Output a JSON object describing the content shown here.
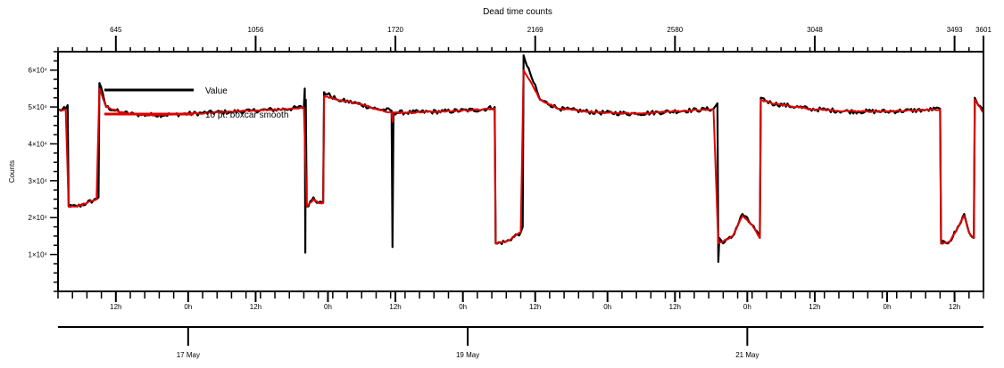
{
  "chart_data": {
    "type": "line",
    "title": "Dead time counts",
    "ylabel": "Counts",
    "x_unit": "hours",
    "xlim": [
      0,
      96
    ],
    "ylim": [
      0,
      65000
    ],
    "top_axis": {
      "ticks": [
        {
          "x": 6,
          "label": "645"
        },
        {
          "x": 20.5,
          "label": "1056"
        },
        {
          "x": 35,
          "label": "1720"
        },
        {
          "x": 49.5,
          "label": "2169"
        },
        {
          "x": 64,
          "label": "2580"
        },
        {
          "x": 78.5,
          "label": "3048"
        },
        {
          "x": 93,
          "label": "3493"
        },
        {
          "x": 96,
          "label": "3601"
        }
      ]
    },
    "y_ticks": [
      {
        "value": 10000,
        "label": "1×10⁴"
      },
      {
        "value": 20000,
        "label": "2×10⁴"
      },
      {
        "value": 30000,
        "label": "3×10⁴"
      },
      {
        "value": 40000,
        "label": "4×10⁴"
      },
      {
        "value": 50000,
        "label": "5×10⁴"
      },
      {
        "value": 60000,
        "label": "6×10⁴"
      }
    ],
    "hour_ticks": [
      {
        "x": 6,
        "label": "12h"
      },
      {
        "x": 13.5,
        "label": "0h"
      },
      {
        "x": 20.5,
        "label": "12h"
      },
      {
        "x": 28,
        "label": "0h"
      },
      {
        "x": 35,
        "label": "12h"
      },
      {
        "x": 42,
        "label": "0h"
      },
      {
        "x": 49.5,
        "label": "12h"
      },
      {
        "x": 57,
        "label": "0h"
      },
      {
        "x": 64,
        "label": "12h"
      },
      {
        "x": 71.5,
        "label": "0h"
      },
      {
        "x": 78.5,
        "label": "12h"
      },
      {
        "x": 86,
        "label": "0h"
      },
      {
        "x": 93,
        "label": "12h"
      }
    ],
    "date_ticks": [
      {
        "x": 13.5,
        "label": "17 May"
      },
      {
        "x": 42.5,
        "label": "19 May"
      },
      {
        "x": 71.5,
        "label": "21 May"
      }
    ],
    "legend": {
      "position": "top-left",
      "entries": [
        {
          "label": "Value",
          "color": "#000000"
        },
        {
          "label": "10 pt. boxcar smooth",
          "color": "#e00000"
        }
      ]
    },
    "series": [
      {
        "name": "Value",
        "color": "#000000",
        "points": [
          [
            0,
            49000
          ],
          [
            0.8,
            49500
          ],
          [
            1.0,
            50500
          ],
          [
            1.1,
            23000
          ],
          [
            2.0,
            23000
          ],
          [
            3.0,
            24000
          ],
          [
            4.0,
            25000
          ],
          [
            4.2,
            25500
          ],
          [
            4.3,
            56500
          ],
          [
            5.0,
            50000
          ],
          [
            6.5,
            48500
          ],
          [
            8,
            48000
          ],
          [
            10,
            47800
          ],
          [
            12,
            48000
          ],
          [
            14,
            48200
          ],
          [
            16,
            48500
          ],
          [
            18,
            48700
          ],
          [
            20,
            49000
          ],
          [
            24,
            49500
          ],
          [
            25.5,
            50000
          ],
          [
            25.6,
            55000
          ],
          [
            25.65,
            10500
          ],
          [
            25.7,
            52000
          ],
          [
            25.8,
            23000
          ],
          [
            26.5,
            25500
          ],
          [
            27.0,
            24000
          ],
          [
            27.5,
            24000
          ],
          [
            27.6,
            54000
          ],
          [
            29,
            52000
          ],
          [
            31,
            51000
          ],
          [
            33,
            49500
          ],
          [
            34.6,
            49000
          ],
          [
            34.7,
            12000
          ],
          [
            34.8,
            48500
          ],
          [
            36,
            48500
          ],
          [
            40,
            48800
          ],
          [
            44,
            49300
          ],
          [
            45.3,
            50000
          ],
          [
            45.4,
            13000
          ],
          [
            46.5,
            13500
          ],
          [
            48.0,
            16000
          ],
          [
            48.2,
            17500
          ],
          [
            48.3,
            64000
          ],
          [
            49.0,
            59000
          ],
          [
            50,
            52000
          ],
          [
            52,
            49500
          ],
          [
            56,
            48500
          ],
          [
            60,
            48200
          ],
          [
            65,
            49000
          ],
          [
            68,
            49500
          ],
          [
            68.4,
            51000
          ],
          [
            68.5,
            8000
          ],
          [
            68.6,
            14500
          ],
          [
            69.0,
            13000
          ],
          [
            70.0,
            15000
          ],
          [
            71.0,
            21000
          ],
          [
            72.0,
            18000
          ],
          [
            72.8,
            14500
          ],
          [
            72.9,
            52500
          ],
          [
            74,
            51000
          ],
          [
            78,
            49500
          ],
          [
            82,
            48800
          ],
          [
            86,
            48800
          ],
          [
            90,
            49200
          ],
          [
            91.5,
            49500
          ],
          [
            91.6,
            13000
          ],
          [
            92.5,
            13500
          ],
          [
            93.5,
            18000
          ],
          [
            94,
            21000
          ],
          [
            94.5,
            16000
          ],
          [
            95.0,
            14500
          ],
          [
            95.1,
            52500
          ],
          [
            96,
            48500
          ]
        ]
      },
      {
        "name": "10 pt. boxcar smooth",
        "color": "#e00000",
        "points": [
          [
            0,
            49000
          ],
          [
            0.8,
            49300
          ],
          [
            1.1,
            23000
          ],
          [
            2.0,
            23000
          ],
          [
            3.0,
            24000
          ],
          [
            4.0,
            25000
          ],
          [
            4.3,
            55000
          ],
          [
            5.0,
            50000
          ],
          [
            6.5,
            48500
          ],
          [
            8,
            48000
          ],
          [
            10,
            47800
          ],
          [
            12,
            48000
          ],
          [
            14,
            48200
          ],
          [
            16,
            48500
          ],
          [
            18,
            48700
          ],
          [
            20,
            49000
          ],
          [
            24,
            49500
          ],
          [
            25.5,
            49800
          ],
          [
            25.8,
            23000
          ],
          [
            26.5,
            25000
          ],
          [
            27.0,
            24000
          ],
          [
            27.5,
            24000
          ],
          [
            27.6,
            53000
          ],
          [
            29,
            52000
          ],
          [
            31,
            51000
          ],
          [
            33,
            49500
          ],
          [
            34.6,
            48500
          ],
          [
            34.7,
            46000
          ],
          [
            34.8,
            48500
          ],
          [
            36,
            48500
          ],
          [
            40,
            48800
          ],
          [
            44,
            49300
          ],
          [
            45.3,
            49500
          ],
          [
            45.4,
            13000
          ],
          [
            46.5,
            13500
          ],
          [
            48.0,
            16000
          ],
          [
            48.3,
            60000
          ],
          [
            49.0,
            57000
          ],
          [
            50,
            52000
          ],
          [
            52,
            49500
          ],
          [
            56,
            48500
          ],
          [
            60,
            48200
          ],
          [
            65,
            49000
          ],
          [
            68,
            49300
          ],
          [
            68.5,
            13000
          ],
          [
            69.0,
            13500
          ],
          [
            70.0,
            15000
          ],
          [
            71.0,
            20500
          ],
          [
            72.0,
            18000
          ],
          [
            72.8,
            14500
          ],
          [
            72.9,
            52000
          ],
          [
            74,
            51000
          ],
          [
            78,
            49500
          ],
          [
            82,
            48800
          ],
          [
            86,
            48800
          ],
          [
            90,
            49200
          ],
          [
            91.5,
            49300
          ],
          [
            91.6,
            13000
          ],
          [
            92.5,
            13500
          ],
          [
            93.5,
            18000
          ],
          [
            94,
            20500
          ],
          [
            94.5,
            16000
          ],
          [
            95.0,
            14500
          ],
          [
            95.1,
            52000
          ],
          [
            96,
            48500
          ]
        ]
      }
    ]
  }
}
